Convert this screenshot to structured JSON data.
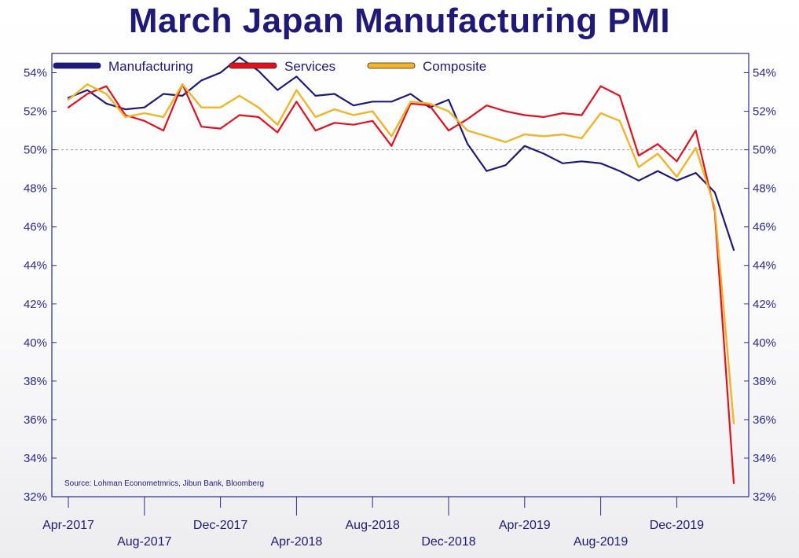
{
  "title": "March Japan Manufacturing PMI",
  "source": "Source: Lohman Econometmrics, Jibun Bank, Bloomberg",
  "chart_data": {
    "type": "line",
    "title": "March Japan Manufacturing PMI",
    "xlabel": "",
    "ylabel": "",
    "ylim": [
      32,
      55
    ],
    "y_ticks": [
      "32%",
      "34%",
      "36%",
      "38%",
      "40%",
      "42%",
      "44%",
      "46%",
      "48%",
      "50%",
      "52%",
      "54%"
    ],
    "y_tick_values": [
      32,
      34,
      36,
      38,
      40,
      42,
      44,
      46,
      48,
      50,
      52,
      54
    ],
    "x_tick_labels": [
      "Apr-2017",
      "Aug-2017",
      "Dec-2017",
      "Apr-2018",
      "Aug-2018",
      "Dec-2018",
      "Apr-2019",
      "Aug-2019",
      "Dec-2019"
    ],
    "x": [
      "Apr-2017",
      "May-2017",
      "Jun-2017",
      "Jul-2017",
      "Aug-2017",
      "Sep-2017",
      "Oct-2017",
      "Nov-2017",
      "Dec-2017",
      "Jan-2018",
      "Feb-2018",
      "Mar-2018",
      "Apr-2018",
      "May-2018",
      "Jun-2018",
      "Jul-2018",
      "Aug-2018",
      "Sep-2018",
      "Oct-2018",
      "Nov-2018",
      "Dec-2018",
      "Jan-2019",
      "Feb-2019",
      "Mar-2019",
      "Apr-2019",
      "May-2019",
      "Jun-2019",
      "Jul-2019",
      "Aug-2019",
      "Sep-2019",
      "Oct-2019",
      "Nov-2019",
      "Dec-2019",
      "Jan-2020",
      "Feb-2020",
      "Mar-2020"
    ],
    "reference_line": 50,
    "grid": false,
    "legend_position": "top-left",
    "series": [
      {
        "name": "Manufacturing",
        "color": "#1f1a78",
        "values": [
          52.7,
          53.1,
          52.4,
          52.1,
          52.2,
          52.9,
          52.8,
          53.6,
          54.0,
          54.8,
          54.1,
          53.1,
          53.8,
          52.8,
          52.9,
          52.3,
          52.5,
          52.5,
          52.9,
          52.2,
          52.6,
          50.3,
          48.9,
          49.2,
          50.2,
          49.8,
          49.3,
          49.4,
          49.3,
          48.9,
          48.4,
          48.9,
          48.4,
          48.8,
          47.8,
          44.8
        ]
      },
      {
        "name": "Services",
        "color": "#e0101f",
        "values": [
          52.2,
          52.9,
          53.3,
          51.8,
          51.5,
          51.0,
          53.4,
          51.2,
          51.1,
          51.8,
          51.7,
          50.9,
          52.5,
          51.0,
          51.4,
          51.3,
          51.5,
          50.2,
          52.4,
          52.3,
          51.0,
          51.6,
          52.3,
          52.0,
          51.8,
          51.7,
          51.9,
          51.8,
          53.3,
          52.8,
          49.7,
          50.3,
          49.4,
          51.0,
          46.8,
          32.7
        ]
      },
      {
        "name": "Composite",
        "color": "#f0b429",
        "values": [
          52.6,
          53.4,
          52.9,
          51.7,
          51.9,
          51.7,
          53.4,
          52.2,
          52.2,
          52.8,
          52.2,
          51.3,
          53.1,
          51.7,
          52.1,
          51.8,
          52.0,
          50.7,
          52.5,
          52.4,
          52.0,
          51.0,
          50.7,
          50.4,
          50.8,
          50.7,
          50.8,
          50.6,
          51.9,
          51.5,
          49.1,
          49.8,
          48.6,
          50.1,
          47.0,
          35.8
        ]
      }
    ]
  }
}
